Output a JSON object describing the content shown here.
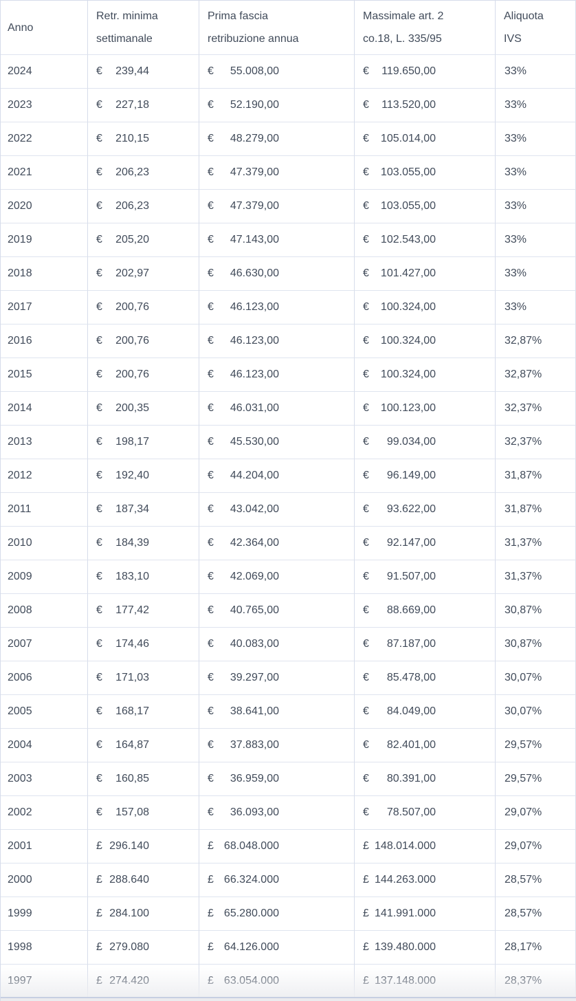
{
  "table": {
    "columns": [
      {
        "id": "anno",
        "label_lines": [
          "Anno"
        ]
      },
      {
        "id": "retr_minima",
        "label_lines": [
          "Retr. minima",
          "settimanale"
        ]
      },
      {
        "id": "prima_fascia",
        "label_lines": [
          "Prima fascia",
          "retribuzione annua"
        ]
      },
      {
        "id": "massimale",
        "label_lines": [
          "Massimale art. 2",
          "co.18, L. 335/95"
        ]
      },
      {
        "id": "aliquota_ivs",
        "label_lines": [
          "Aliquota",
          "IVS"
        ]
      }
    ],
    "row_fields": [
      "anno",
      "retr_minima_symbol",
      "retr_minima_settimanale",
      "prima_fascia_symbol",
      "prima_fascia_retribuzione_annua",
      "massimale_symbol",
      "massimale_art2",
      "aliquota_ivs"
    ],
    "rows": [
      [
        "2024",
        "€",
        "239,44",
        "€",
        "55.008,00",
        "€",
        "119.650,00",
        "33%"
      ],
      [
        "2023",
        "€",
        "227,18",
        "€",
        "52.190,00",
        "€",
        "113.520,00",
        "33%"
      ],
      [
        "2022",
        "€",
        "210,15",
        "€",
        "48.279,00",
        "€",
        "105.014,00",
        "33%"
      ],
      [
        "2021",
        "€",
        "206,23",
        "€",
        "47.379,00",
        "€",
        "103.055,00",
        "33%"
      ],
      [
        "2020",
        "€",
        "206,23",
        "€",
        "47.379,00",
        "€",
        "103.055,00",
        "33%"
      ],
      [
        "2019",
        "€",
        "205,20",
        "€",
        "47.143,00",
        "€",
        "102.543,00",
        "33%"
      ],
      [
        "2018",
        "€",
        "202,97",
        "€",
        "46.630,00",
        "€",
        "101.427,00",
        "33%"
      ],
      [
        "2017",
        "€",
        "200,76",
        "€",
        "46.123,00",
        "€",
        "100.324,00",
        "33%"
      ],
      [
        "2016",
        "€",
        "200,76",
        "€",
        "46.123,00",
        "€",
        "100.324,00",
        "32,87%"
      ],
      [
        "2015",
        "€",
        "200,76",
        "€",
        "46.123,00",
        "€",
        "100.324,00",
        "32,87%"
      ],
      [
        "2014",
        "€",
        "200,35",
        "€",
        "46.031,00",
        "€",
        "100.123,00",
        "32,37%"
      ],
      [
        "2013",
        "€",
        "198,17",
        "€",
        "45.530,00",
        "€",
        "99.034,00",
        "32,37%"
      ],
      [
        "2012",
        "€",
        "192,40",
        "€",
        "44.204,00",
        "€",
        "96.149,00",
        "31,87%"
      ],
      [
        "2011",
        "€",
        "187,34",
        "€",
        "43.042,00",
        "€",
        "93.622,00",
        "31,87%"
      ],
      [
        "2010",
        "€",
        "184,39",
        "€",
        "42.364,00",
        "€",
        "92.147,00",
        "31,37%"
      ],
      [
        "2009",
        "€",
        "183,10",
        "€",
        "42.069,00",
        "€",
        "91.507,00",
        "31,37%"
      ],
      [
        "2008",
        "€",
        "177,42",
        "€",
        "40.765,00",
        "€",
        "88.669,00",
        "30,87%"
      ],
      [
        "2007",
        "€",
        "174,46",
        "€",
        "40.083,00",
        "€",
        "87.187,00",
        "30,87%"
      ],
      [
        "2006",
        "€",
        "171,03",
        "€",
        "39.297,00",
        "€",
        "85.478,00",
        "30,07%"
      ],
      [
        "2005",
        "€",
        "168,17",
        "€",
        "38.641,00",
        "€",
        "84.049,00",
        "30,07%"
      ],
      [
        "2004",
        "€",
        "164,87",
        "€",
        "37.883,00",
        "€",
        "82.401,00",
        "29,57%"
      ],
      [
        "2003",
        "€",
        "160,85",
        "€",
        "36.959,00",
        "€",
        "80.391,00",
        "29,57%"
      ],
      [
        "2002",
        "€",
        "157,08",
        "€",
        "36.093,00",
        "€",
        "78.507,00",
        "29,07%"
      ],
      [
        "2001",
        "£",
        "296.140",
        "£",
        "68.048.000",
        "£",
        "148.014.000",
        "29,07%"
      ],
      [
        "2000",
        "£",
        "288.640",
        "£",
        "66.324.000",
        "£",
        "144.263.000",
        "28,57%"
      ],
      [
        "1999",
        "£",
        "284.100",
        "£",
        "65.280.000",
        "£",
        "141.991.000",
        "28,57%"
      ],
      [
        "1998",
        "£",
        "279.080",
        "£",
        "64.126.000",
        "£",
        "139.480.000",
        "28,17%"
      ],
      [
        "1997",
        "£",
        "274.420",
        "£",
        "63.054.000",
        "£",
        "137.148.000",
        "28,37%"
      ]
    ]
  },
  "colors": {
    "text": "#414b5a",
    "vertical_border": "#d6dcea",
    "horizontal_border": "#dfe4ef",
    "bottom_line": "#c6cfe2",
    "bottom_strip": "#ebebee"
  }
}
